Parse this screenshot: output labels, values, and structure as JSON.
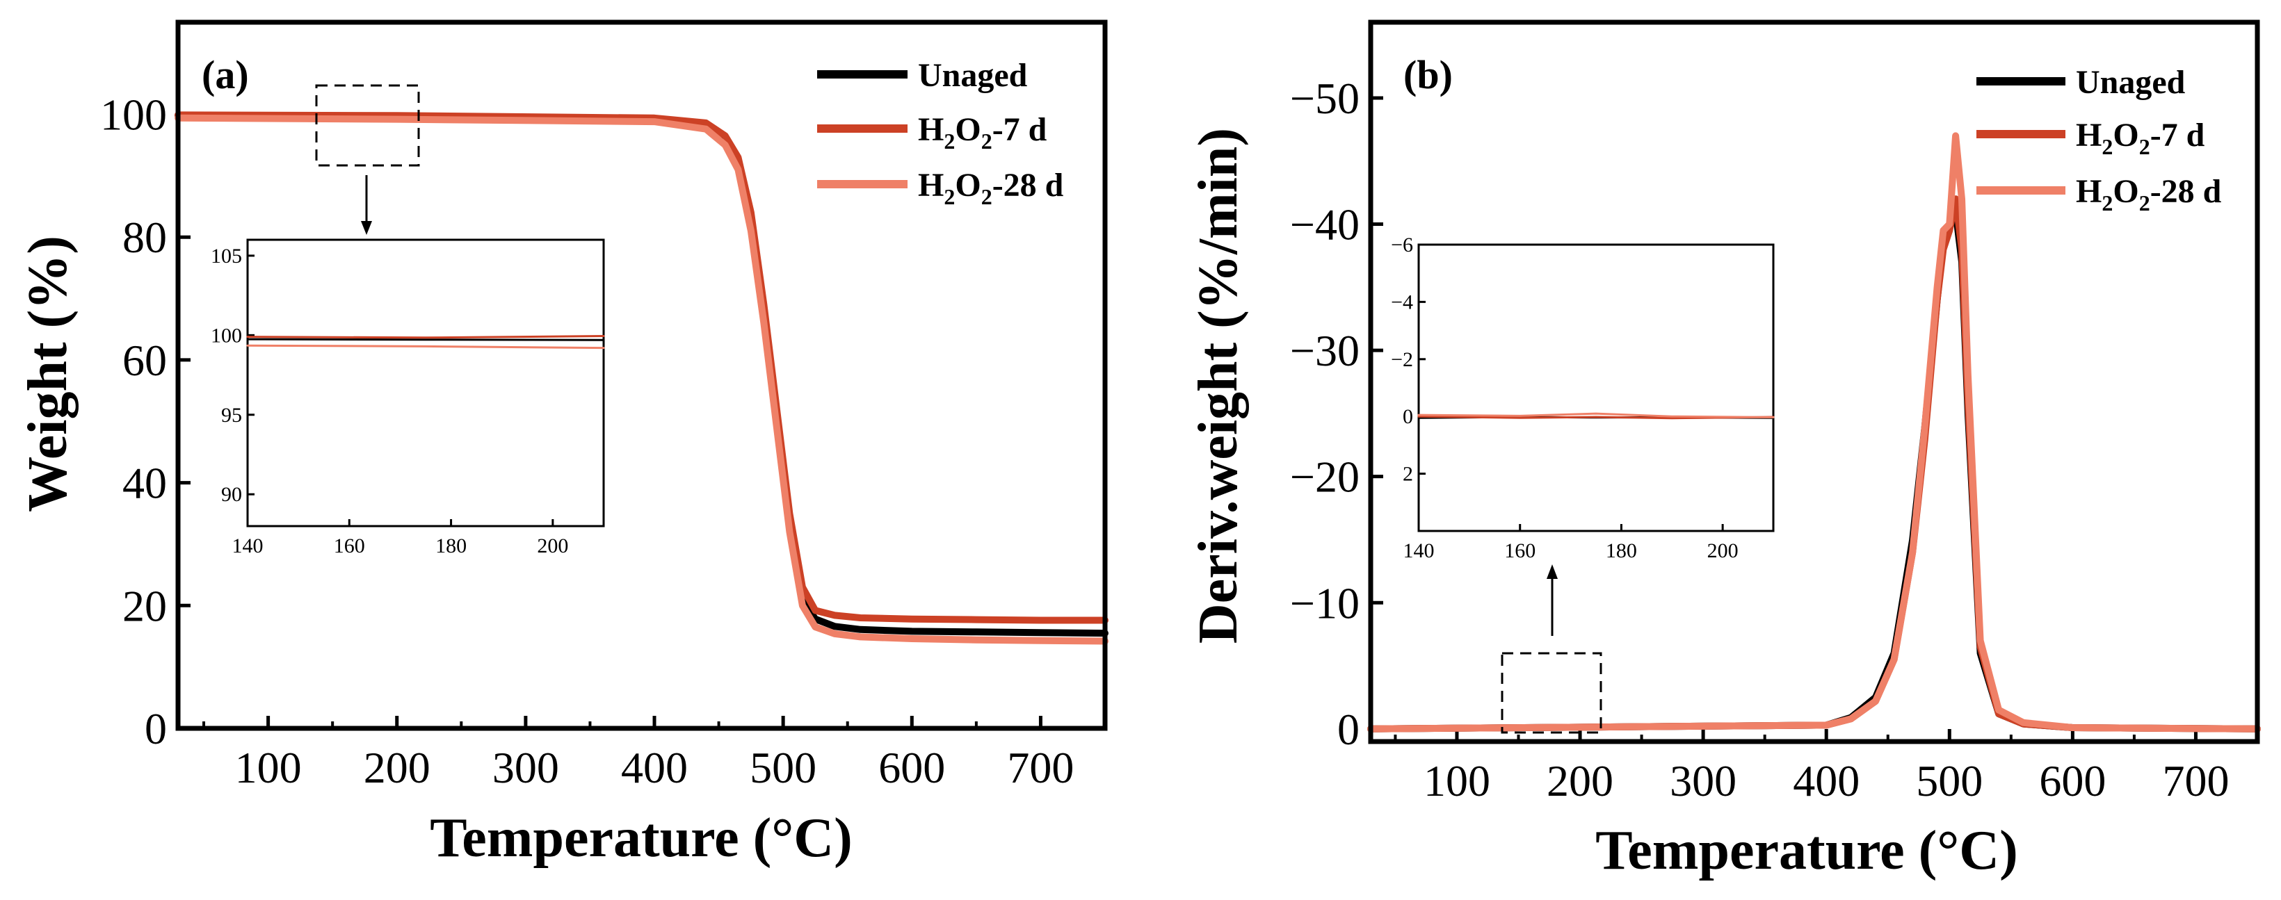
{
  "chart_data": [
    {
      "id": "a",
      "type": "line",
      "panel_label": "(a)",
      "xlabel": "Temperature (°C)",
      "ylabel": "Weight (%)",
      "xlim": [
        30,
        750
      ],
      "ylim": [
        0,
        115
      ],
      "xticks": [
        100,
        200,
        300,
        400,
        500,
        600,
        700
      ],
      "yticks": [
        0,
        20,
        40,
        60,
        80,
        100
      ],
      "legend": {
        "location": "top-right",
        "entries": [
          "Unaged",
          "H2O2-7 d",
          "H2O2-28 d"
        ]
      },
      "series": [
        {
          "name": "Unaged",
          "legend_label": "Unaged",
          "color": "#000000",
          "x": [
            30,
            200,
            400,
            440,
            455,
            465,
            475,
            485,
            495,
            505,
            515,
            525,
            540,
            560,
            600,
            650,
            700,
            750
          ],
          "y": [
            99.8,
            99.7,
            99.1,
            98.0,
            95.5,
            91.5,
            82,
            67,
            50,
            33,
            21,
            17.8,
            16.6,
            16.1,
            15.8,
            15.7,
            15.6,
            15.5
          ]
        },
        {
          "name": "H2O2-7 d",
          "legend_label": "H",
          "legend_sub1": "2",
          "legend_mid": "O",
          "legend_sub2": "2",
          "legend_tail": "-7 d",
          "color": "#cc4125",
          "x": [
            30,
            200,
            400,
            440,
            455,
            465,
            475,
            485,
            495,
            505,
            515,
            525,
            540,
            560,
            600,
            650,
            700,
            750
          ],
          "y": [
            99.9,
            99.8,
            99.4,
            98.6,
            96.5,
            93,
            84,
            69,
            52,
            35,
            23,
            19.2,
            18.4,
            18.0,
            17.8,
            17.7,
            17.6,
            17.6
          ]
        },
        {
          "name": "H2O2-28 d",
          "legend_label": "H",
          "legend_sub1": "2",
          "legend_mid": "O",
          "legend_sub2": "2",
          "legend_tail": "-28 d",
          "color": "#ef8067",
          "x": [
            30,
            200,
            400,
            440,
            455,
            465,
            475,
            485,
            495,
            505,
            515,
            525,
            540,
            560,
            600,
            650,
            700,
            750
          ],
          "y": [
            99.4,
            99.2,
            98.8,
            97.6,
            95,
            91,
            81,
            66,
            49,
            32,
            20,
            16.5,
            15.4,
            14.9,
            14.6,
            14.4,
            14.3,
            14.2
          ]
        }
      ],
      "inset": {
        "xlim": [
          140,
          210
        ],
        "ylim": [
          88,
          106
        ],
        "xticks": [
          140,
          160,
          180,
          200
        ],
        "yticks": [
          90,
          95,
          100,
          105
        ],
        "zoom_region": {
          "x": [
            140,
            215
          ],
          "y": [
            92,
            105
          ]
        },
        "series": [
          {
            "name": "Unaged",
            "x": [
              140,
              175,
              210
            ],
            "y": [
              99.75,
              99.72,
              99.7
            ]
          },
          {
            "name": "H2O2-7 d",
            "x": [
              140,
              175,
              210
            ],
            "y": [
              99.9,
              99.85,
              99.95
            ]
          },
          {
            "name": "H2O2-28 d",
            "x": [
              140,
              175,
              210
            ],
            "y": [
              99.35,
              99.3,
              99.2
            ]
          }
        ]
      }
    },
    {
      "id": "b",
      "type": "line",
      "panel_label": "(b)",
      "xlabel": "Temperature (°C)",
      "ylabel": "Deriv.weight (%/min)",
      "xlim": [
        30,
        750
      ],
      "ylim": [
        1,
        -56
      ],
      "y_inverted": true,
      "xticks": [
        100,
        200,
        300,
        400,
        500,
        600,
        700
      ],
      "yticks": [
        0,
        -10,
        -20,
        -30,
        -40,
        -50
      ],
      "ytick_labels": [
        "0",
        "−10",
        "−20",
        "−30",
        "−40",
        "−50"
      ],
      "legend": {
        "location": "top-right",
        "entries": [
          "Unaged",
          "H2O2-7 d",
          "H2O2-28 d"
        ]
      },
      "series": [
        {
          "name": "Unaged",
          "color": "#000000",
          "x": [
            30,
            400,
            420,
            440,
            455,
            470,
            480,
            490,
            495,
            500,
            505,
            510,
            515,
            525,
            540,
            560,
            600,
            750
          ],
          "y": [
            0,
            -0.3,
            -0.9,
            -2.5,
            -6,
            -15,
            -24,
            -34,
            -38.5,
            -40,
            -41,
            -37,
            -25,
            -6,
            -1.2,
            -0.4,
            -0.1,
            0
          ]
        },
        {
          "name": "H2O2-7 d",
          "color": "#cc4125",
          "x": [
            30,
            400,
            420,
            440,
            455,
            470,
            480,
            490,
            495,
            500,
            505,
            510,
            515,
            525,
            540,
            560,
            600,
            750
          ],
          "y": [
            0,
            -0.3,
            -0.8,
            -2.2,
            -5.5,
            -14,
            -23,
            -34,
            -38,
            -39.5,
            -42,
            -38,
            -26,
            -6.5,
            -1.2,
            -0.4,
            -0.1,
            0
          ]
        },
        {
          "name": "H2O2-28 d",
          "color": "#ef8067",
          "x": [
            30,
            400,
            420,
            440,
            455,
            470,
            480,
            490,
            495,
            500,
            505,
            510,
            515,
            525,
            540,
            560,
            600,
            750
          ],
          "y": [
            0,
            -0.3,
            -0.8,
            -2.2,
            -5.5,
            -14,
            -24,
            -35,
            -39.5,
            -40,
            -47,
            -42,
            -28,
            -7,
            -1.5,
            -0.5,
            -0.1,
            0
          ]
        }
      ],
      "inset": {
        "xlim": [
          140,
          210
        ],
        "ylim": [
          4,
          -6
        ],
        "xticks": [
          140,
          160,
          180,
          200
        ],
        "yticks": [
          -6,
          -4,
          -2,
          0,
          2
        ],
        "ytick_labels": [
          "−6",
          "−4",
          "−2",
          "0",
          "2"
        ],
        "zoom_region": {
          "x": [
            135,
            212
          ],
          "y": [
            0.5,
            -5.5
          ]
        },
        "series": [
          {
            "name": "Unaged",
            "x": [
              140,
              160,
              175,
              190,
              210
            ],
            "y": [
              0.05,
              0.02,
              0.04,
              0.03,
              0.05
            ]
          },
          {
            "name": "H2O2-7 d",
            "x": [
              140,
              160,
              175,
              190,
              210
            ],
            "y": [
              0.0,
              0.05,
              0.02,
              0.06,
              0.02
            ]
          },
          {
            "name": "H2O2-28 d",
            "x": [
              140,
              160,
              175,
              190,
              210
            ],
            "y": [
              -0.05,
              -0.02,
              -0.1,
              0.0,
              0.03
            ]
          }
        ]
      }
    }
  ]
}
